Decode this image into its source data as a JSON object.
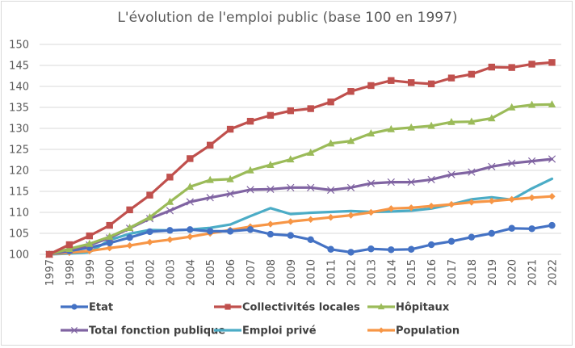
{
  "chart_data": {
    "type": "line",
    "title": "L'évolution de l'emploi public (base 100 en 1997)",
    "xlabel": "",
    "ylabel": "",
    "ylim": [
      100,
      150
    ],
    "yticks": [
      100,
      105,
      110,
      115,
      120,
      125,
      130,
      135,
      140,
      145,
      150
    ],
    "grid": true,
    "legend_position": "bottom",
    "x": [
      "1997",
      "1998",
      "1999",
      "2000",
      "2001",
      "2002",
      "2003",
      "2004",
      "2005",
      "2006",
      "2007",
      "2008",
      "2009",
      "2010",
      "2011",
      "2012",
      "2013",
      "2014",
      "2015",
      "2016",
      "2017",
      "2018",
      "2019",
      "2020",
      "2021",
      "2022"
    ],
    "series": [
      {
        "name": "Etat",
        "color": "#4472c4",
        "marker": "circle",
        "values": [
          100,
          100.8,
          101.6,
          102.7,
          104.0,
          105.4,
          105.7,
          105.9,
          105.5,
          105.5,
          105.9,
          104.8,
          104.5,
          103.5,
          101.2,
          100.5,
          101.3,
          101.1,
          101.2,
          102.3,
          103.1,
          104.1,
          105.0,
          106.2,
          106.1,
          106.9
        ]
      },
      {
        "name": "Collectivités locales",
        "color": "#c0504d",
        "marker": "square",
        "values": [
          100,
          102.3,
          104.4,
          106.9,
          110.6,
          114.1,
          118.4,
          122.8,
          126.0,
          129.8,
          131.7,
          133.1,
          134.2,
          134.7,
          136.3,
          138.8,
          140.2,
          141.4,
          140.9,
          140.6,
          142.0,
          142.9,
          144.6,
          144.5,
          145.3,
          145.7
        ]
      },
      {
        "name": "Hôpitaux",
        "color": "#9bbb59",
        "marker": "triangle",
        "values": [
          100,
          101.3,
          102.5,
          104.2,
          106.3,
          108.8,
          112.5,
          116.1,
          117.7,
          117.9,
          120.0,
          121.3,
          122.6,
          124.2,
          126.4,
          127.0,
          128.8,
          129.8,
          130.2,
          130.6,
          131.5,
          131.6,
          132.4,
          135.0,
          135.6,
          135.7
        ]
      },
      {
        "name": "Total fonction publique",
        "color": "#8064a2",
        "marker": "x",
        "values": [
          100,
          101.1,
          102.2,
          103.9,
          106.2,
          108.5,
          110.4,
          112.5,
          113.5,
          114.4,
          115.4,
          115.5,
          115.9,
          115.9,
          115.3,
          115.9,
          116.9,
          117.2,
          117.2,
          117.8,
          119.0,
          119.6,
          120.9,
          121.7,
          122.2,
          122.7
        ]
      },
      {
        "name": "Emploi privé",
        "color": "#4bacc6",
        "marker": "none",
        "values": [
          100,
          100.2,
          100.5,
          103.4,
          104.9,
          105.8,
          105.7,
          105.9,
          106.3,
          107.1,
          109.1,
          111.0,
          109.6,
          109.9,
          110.1,
          110.3,
          110.1,
          110.2,
          110.4,
          110.9,
          111.9,
          113.1,
          113.6,
          113.0,
          115.7,
          118.0
        ]
      },
      {
        "name": "Population",
        "color": "#f79646",
        "marker": "diamond",
        "values": [
          100,
          100.4,
          100.8,
          101.5,
          102.1,
          102.9,
          103.5,
          104.2,
          105.0,
          105.8,
          106.6,
          107.2,
          107.8,
          108.3,
          108.8,
          109.3,
          110.0,
          110.9,
          111.1,
          111.5,
          111.9,
          112.4,
          112.7,
          113.1,
          113.5,
          113.8
        ]
      }
    ]
  }
}
